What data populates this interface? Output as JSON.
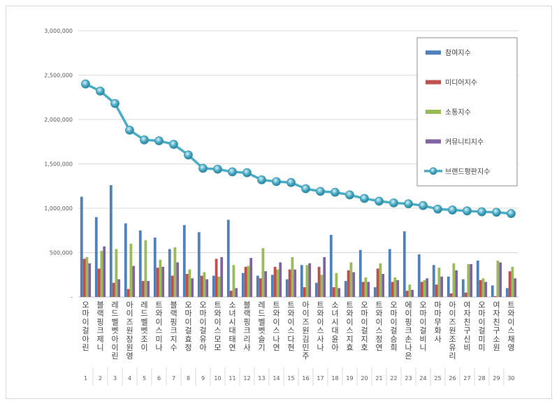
{
  "chart_data": {
    "type": "bar",
    "title": "",
    "xlabel": "",
    "ylabel": "",
    "ylim": [
      0,
      3000000
    ],
    "y_ticks": [
      "-",
      "500,000",
      "1,000,000",
      "1,500,000",
      "2,000,000",
      "2,500,000",
      "3,000,000"
    ],
    "grid": true,
    "legend_position": "top-right",
    "categories": [
      "오마이걸 아린",
      "블랙핑크 제니",
      "레드벨벳 아이린",
      "아이즈원 장원영",
      "레드벨벳 조이",
      "트와이스 미나",
      "블랙핑크 지수",
      "오마이걸 효정",
      "오마이걸 유아",
      "트와이스 모모",
      "소녀시대 태연",
      "블랙핑크 리사",
      "레드벨벳 슬기",
      "트와이스 나연",
      "트와이스 다현",
      "아이즈원 김민주",
      "트와이스 사나",
      "소녀시대 윤아",
      "트와이스 지효",
      "오마이걸 지호",
      "트와이스 정연",
      "오마이걸 승희",
      "에이핑크 손나은",
      "오마이걸 비니",
      "마마무 화사",
      "아이즈원 조유리",
      "여자친구 신비",
      "오마이걸 미미",
      "여자친구 소원",
      "트와이스 채영"
    ],
    "ranks": [
      "1",
      "2",
      "3",
      "4",
      "5",
      "6",
      "7",
      "8",
      "9",
      "10",
      "11",
      "12",
      "13",
      "14",
      "15",
      "16",
      "17",
      "18",
      "19",
      "20",
      "21",
      "22",
      "23",
      "24",
      "25",
      "26",
      "27",
      "28",
      "29",
      "30"
    ],
    "series": [
      {
        "name": "참여지수",
        "kind": "bar",
        "color": "#4f81bd",
        "values": [
          1130000,
          900000,
          1260000,
          830000,
          750000,
          670000,
          540000,
          810000,
          730000,
          240000,
          870000,
          270000,
          240000,
          250000,
          200000,
          360000,
          160000,
          700000,
          180000,
          530000,
          110000,
          540000,
          740000,
          480000,
          360000,
          230000,
          200000,
          410000,
          130000,
          100000
        ]
      },
      {
        "name": "미디어지수",
        "kind": "bar",
        "color": "#c0504d",
        "values": [
          430000,
          320000,
          160000,
          90000,
          180000,
          330000,
          240000,
          260000,
          240000,
          430000,
          70000,
          340000,
          210000,
          340000,
          310000,
          110000,
          340000,
          110000,
          300000,
          170000,
          320000,
          170000,
          70000,
          170000,
          140000,
          40000,
          50000,
          190000,
          10000,
          290000
        ]
      },
      {
        "name": "소통지수",
        "kind": "bar",
        "color": "#9bbb59",
        "values": [
          450000,
          520000,
          540000,
          600000,
          640000,
          420000,
          560000,
          310000,
          280000,
          230000,
          360000,
          350000,
          550000,
          310000,
          450000,
          360000,
          250000,
          270000,
          390000,
          220000,
          380000,
          220000,
          140000,
          190000,
          330000,
          380000,
          370000,
          210000,
          410000,
          340000
        ]
      },
      {
        "name": "커뮤니티지수",
        "kind": "bar",
        "color": "#8064a2",
        "values": [
          380000,
          570000,
          200000,
          350000,
          180000,
          340000,
          390000,
          210000,
          200000,
          450000,
          100000,
          440000,
          290000,
          390000,
          310000,
          380000,
          450000,
          100000,
          280000,
          170000,
          260000,
          190000,
          80000,
          210000,
          230000,
          300000,
          370000,
          170000,
          390000,
          210000
        ]
      },
      {
        "name": "브랜드평판지수",
        "kind": "line",
        "color": "#4bacc6",
        "values": [
          2400000,
          2320000,
          2180000,
          1880000,
          1770000,
          1760000,
          1720000,
          1600000,
          1450000,
          1440000,
          1410000,
          1400000,
          1320000,
          1300000,
          1290000,
          1220000,
          1190000,
          1180000,
          1150000,
          1110000,
          1080000,
          1060000,
          1050000,
          1030000,
          990000,
          980000,
          970000,
          960000,
          955000,
          940000
        ]
      }
    ]
  }
}
